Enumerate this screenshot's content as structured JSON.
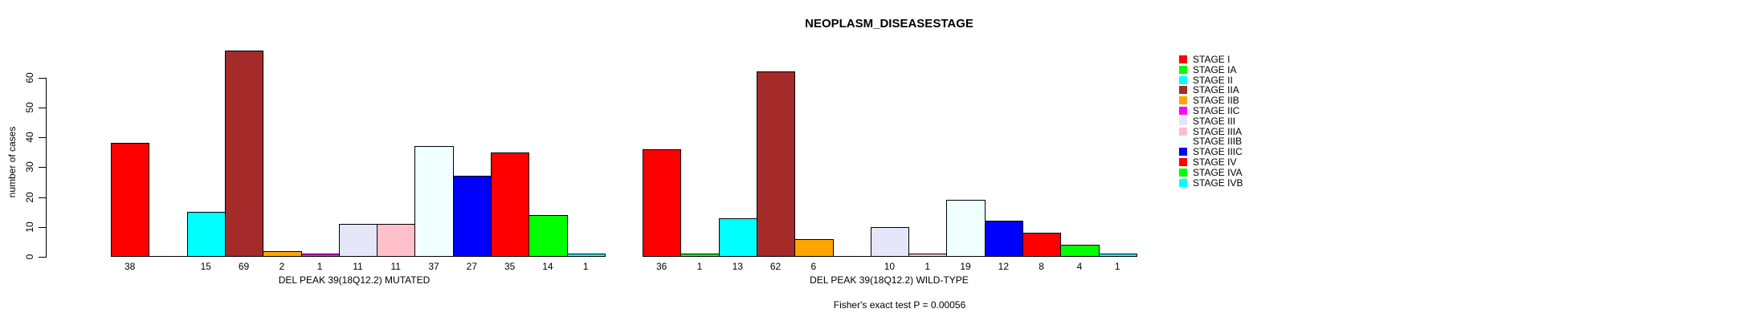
{
  "figure": {
    "title": "NEOPLASM_DISEASESTAGE",
    "ylabel": "number of cases",
    "annotation": "Fisher's exact test P = 0.00056"
  },
  "chart_data": {
    "type": "bar",
    "title": "NEOPLASM_DISEASESTAGE",
    "ylabel": "number of cases",
    "xlabel": "",
    "ylim": [
      0,
      60
    ],
    "yticks": [
      0,
      10,
      20,
      30,
      40,
      50,
      60
    ],
    "grid": false,
    "legend_position": "right",
    "bar_outline": "#000000",
    "categories": [
      "STAGE I",
      "STAGE IA",
      "STAGE II",
      "STAGE IIA",
      "STAGE IIB",
      "STAGE IIC",
      "STAGE III",
      "STAGE IIIA",
      "STAGE IIIB",
      "STAGE IIIC",
      "STAGE IV",
      "STAGE IVA",
      "STAGE IVB"
    ],
    "colors": [
      "#FF0000",
      "#00FF00",
      "#00FFFF",
      "#A52A2A",
      "#FFA500",
      "#FF00FF",
      "#E6E6FA",
      "#FFC0CB",
      "#F0FFFF",
      "#0000FF",
      "#FF0000",
      "#00FF00",
      "#00FFFF"
    ],
    "series": [
      {
        "name": "DEL PEAK 39(18Q12.2) MUTATED",
        "values": [
          38,
          0,
          15,
          69,
          2,
          1,
          11,
          11,
          37,
          27,
          35,
          14,
          1
        ]
      },
      {
        "name": "DEL PEAK 39(18Q12.2) WILD-TYPE",
        "values": [
          36,
          1,
          13,
          62,
          6,
          0,
          10,
          1,
          19,
          12,
          8,
          4,
          1
        ]
      }
    ],
    "annotation": "Fisher's exact test P = 0.00056"
  }
}
